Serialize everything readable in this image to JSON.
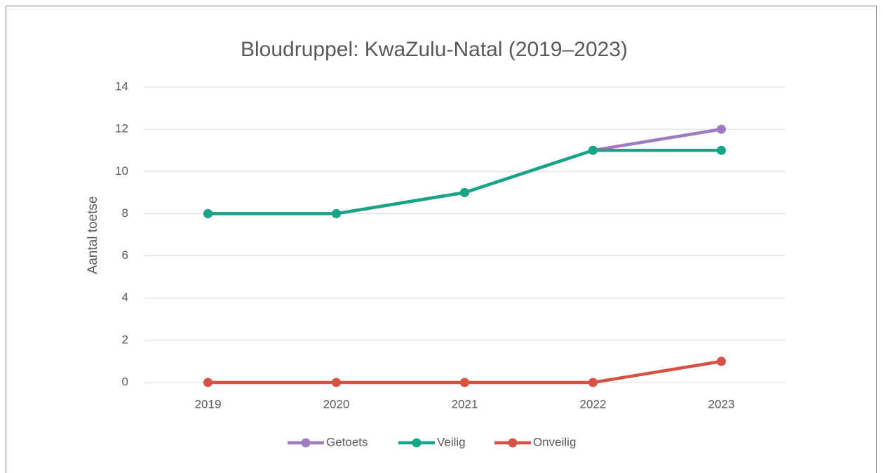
{
  "chart_data": {
    "type": "line",
    "title": "Bloudruppel: KwaZulu-Natal (2019–2023)",
    "y_label": "Aantal toetse",
    "categories": [
      "2019",
      "2020",
      "2021",
      "2022",
      "2023"
    ],
    "series": [
      {
        "name": "Getoets",
        "color": "#9e7cc1",
        "values": [
          8,
          8,
          9,
          11,
          12
        ]
      },
      {
        "name": "Veilig",
        "color": "#17a487",
        "values": [
          8,
          8,
          9,
          11,
          11
        ]
      },
      {
        "name": "Onveilig",
        "color": "#d65245",
        "values": [
          0,
          0,
          0,
          0,
          1
        ]
      }
    ],
    "ylim": [
      0,
      14
    ],
    "yticks": [
      0,
      2,
      4,
      6,
      8,
      10,
      12,
      14
    ],
    "grid": true,
    "legend": "bottom"
  }
}
